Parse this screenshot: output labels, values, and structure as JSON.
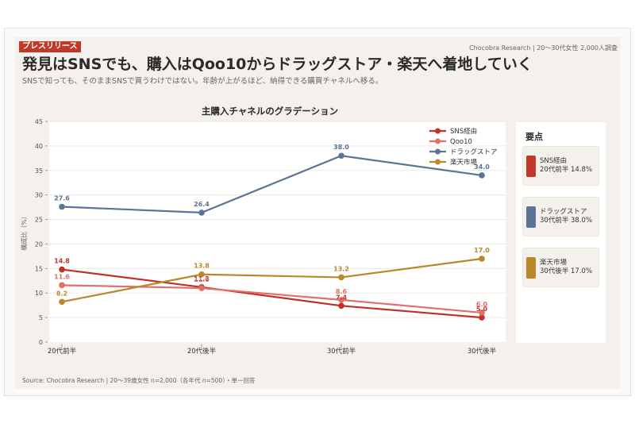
{
  "header": {
    "badge": "プレスリリース",
    "byline": "Chocobra Research | 20〜30代女性 2,000人調査",
    "title": "発見はSNSでも、購入はQoo10からドラッグストア・楽天へ着地していく",
    "subtitle": "SNSで知っても、そのままSNSで買うわけではない。年齢が上がるほど、納得できる購買チャネルへ移る。"
  },
  "footer": {
    "source": "Source: Chocobra Research | 20〜39歳女性 n=2,000（各年代 n=500）・単一回答"
  },
  "key_points": {
    "title": "要点",
    "items": [
      {
        "line1": "SNS経由",
        "line2": "20代前半 14.8%",
        "color": "#c0392b"
      },
      {
        "line1": "ドラッグストア",
        "line2": "30代前半 38.0%",
        "color": "#5b7394"
      },
      {
        "line1": "楽天市場",
        "line2": "30代後半 17.0%",
        "color": "#b8882a"
      }
    ]
  },
  "chart_data": {
    "type": "line",
    "title": "主購入チャネルのグラデーション",
    "xlabel": "",
    "ylabel": "構成比（%）",
    "categories": [
      "20代前半",
      "20代後半",
      "30代前半",
      "30代後半"
    ],
    "ylim": [
      0,
      45
    ],
    "yticks": [
      0,
      5,
      10,
      15,
      20,
      25,
      30,
      35,
      40,
      45
    ],
    "grid": true,
    "legend_position": "top-right",
    "series": [
      {
        "name": "SNS経由",
        "color": "#c0312b",
        "values": [
          14.8,
          11.2,
          7.4,
          5.0
        ]
      },
      {
        "name": "Qoo10",
        "color": "#e07068",
        "values": [
          11.6,
          11.0,
          8.6,
          6.0
        ]
      },
      {
        "name": "ドラッグストア",
        "color": "#5b7394",
        "values": [
          27.6,
          26.4,
          38.0,
          34.0
        ]
      },
      {
        "name": "楽天市場",
        "color": "#b8882a",
        "values": [
          8.2,
          13.8,
          13.2,
          17.0
        ]
      }
    ]
  }
}
